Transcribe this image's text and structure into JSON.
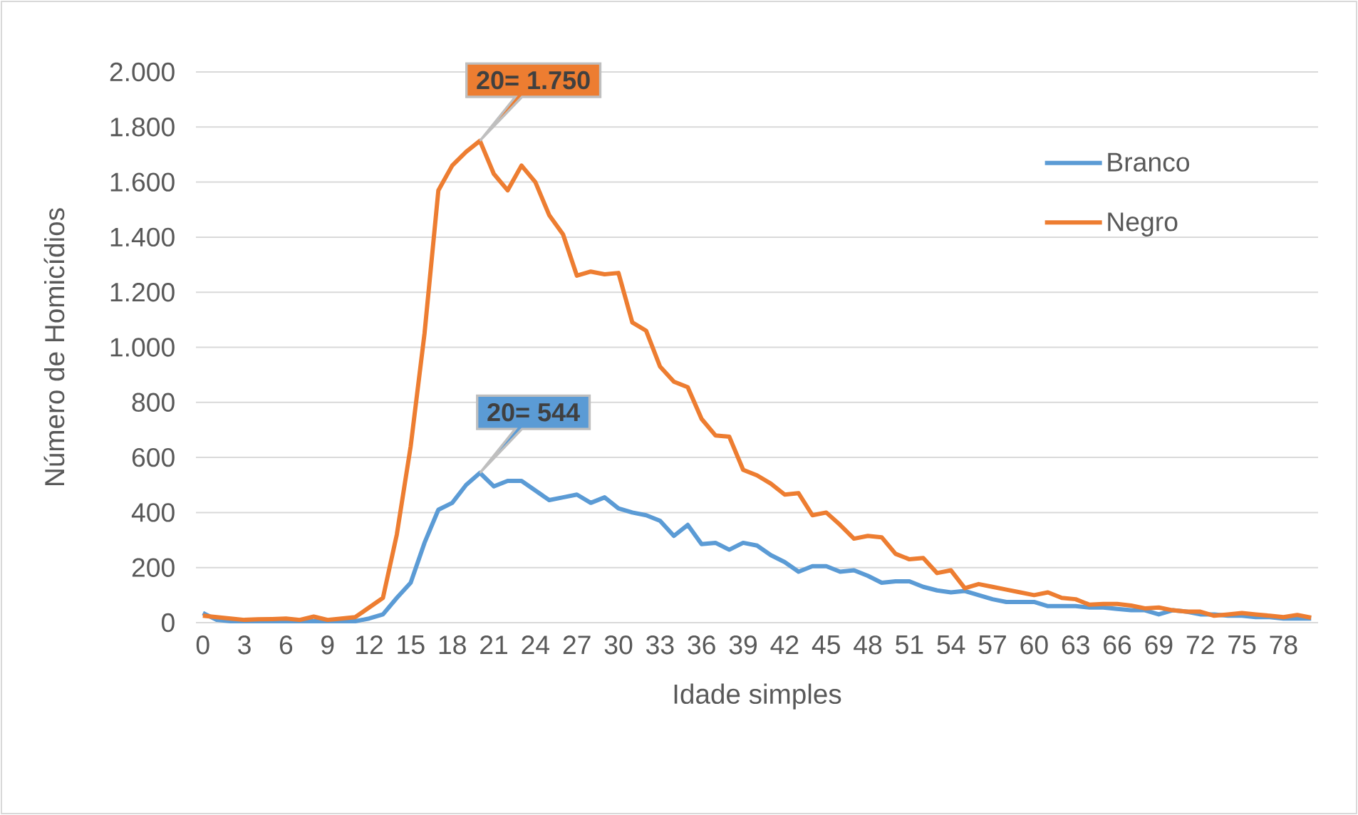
{
  "chart_data": {
    "type": "line",
    "xlabel": "Idade simples",
    "ylabel": "Número de Homicídios",
    "categories": [
      "0",
      null,
      null,
      "3",
      null,
      null,
      "6",
      null,
      null,
      "9",
      null,
      null,
      "12",
      null,
      null,
      "15",
      null,
      null,
      "18",
      null,
      null,
      "21",
      null,
      null,
      "24",
      null,
      null,
      "27",
      null,
      null,
      "30",
      null,
      null,
      "33",
      null,
      null,
      "36",
      null,
      null,
      "39",
      null,
      null,
      "42",
      null,
      null,
      "45",
      null,
      null,
      "48",
      null,
      null,
      "51",
      null,
      null,
      "54",
      null,
      null,
      "57",
      null,
      null,
      "60",
      null,
      null,
      "63",
      null,
      null,
      "66",
      null,
      null,
      "69",
      null,
      null,
      "72",
      null,
      null,
      "75",
      null,
      null,
      "78",
      null,
      null
    ],
    "series": [
      {
        "name": "Branco",
        "color": "#5b9bd5",
        "values": [
          35,
          10,
          5,
          5,
          5,
          5,
          5,
          5,
          5,
          5,
          5,
          5,
          15,
          30,
          90,
          145,
          290,
          410,
          435,
          500,
          544,
          495,
          515,
          515,
          480,
          445,
          455,
          465,
          435,
          455,
          415,
          400,
          390,
          370,
          315,
          355,
          285,
          290,
          265,
          290,
          280,
          245,
          220,
          185,
          205,
          205,
          185,
          190,
          170,
          145,
          150,
          150,
          130,
          117,
          110,
          115,
          100,
          85,
          75,
          75,
          75,
          60,
          60,
          60,
          55,
          55,
          50,
          45,
          45,
          30,
          45,
          40,
          30,
          30,
          25,
          25,
          20,
          20,
          15,
          15,
          15
        ]
      },
      {
        "name": "Negro",
        "color": "#ed7d31",
        "values": [
          25,
          20,
          15,
          10,
          12,
          13,
          15,
          10,
          22,
          10,
          15,
          20,
          55,
          90,
          320,
          640,
          1050,
          1570,
          1660,
          1710,
          1750,
          1630,
          1570,
          1660,
          1600,
          1480,
          1410,
          1260,
          1275,
          1265,
          1270,
          1090,
          1060,
          930,
          875,
          855,
          740,
          680,
          675,
          555,
          535,
          505,
          465,
          470,
          390,
          400,
          355,
          305,
          315,
          310,
          250,
          230,
          235,
          180,
          190,
          125,
          140,
          130,
          120,
          110,
          100,
          110,
          90,
          85,
          65,
          68,
          68,
          62,
          52,
          55,
          45,
          40,
          40,
          25,
          30,
          35,
          30,
          25,
          20,
          28,
          18
        ]
      }
    ],
    "ylim": [
      0,
      2000
    ],
    "yticks": [
      0,
      200,
      400,
      600,
      800,
      {
        "value": 1000,
        "label": "1.000"
      },
      {
        "value": 1200,
        "label": "1.200"
      },
      {
        "value": 1400,
        "label": "1.400"
      },
      {
        "value": 1600,
        "label": "1.600"
      },
      {
        "value": 1800,
        "label": "1.800"
      },
      {
        "value": 2000,
        "label": "2.000"
      }
    ],
    "grid": "y",
    "legend": "top right",
    "marker": "none",
    "line_style": "solid",
    "annotations": [
      "20= 1.750",
      "20= 544"
    ]
  }
}
